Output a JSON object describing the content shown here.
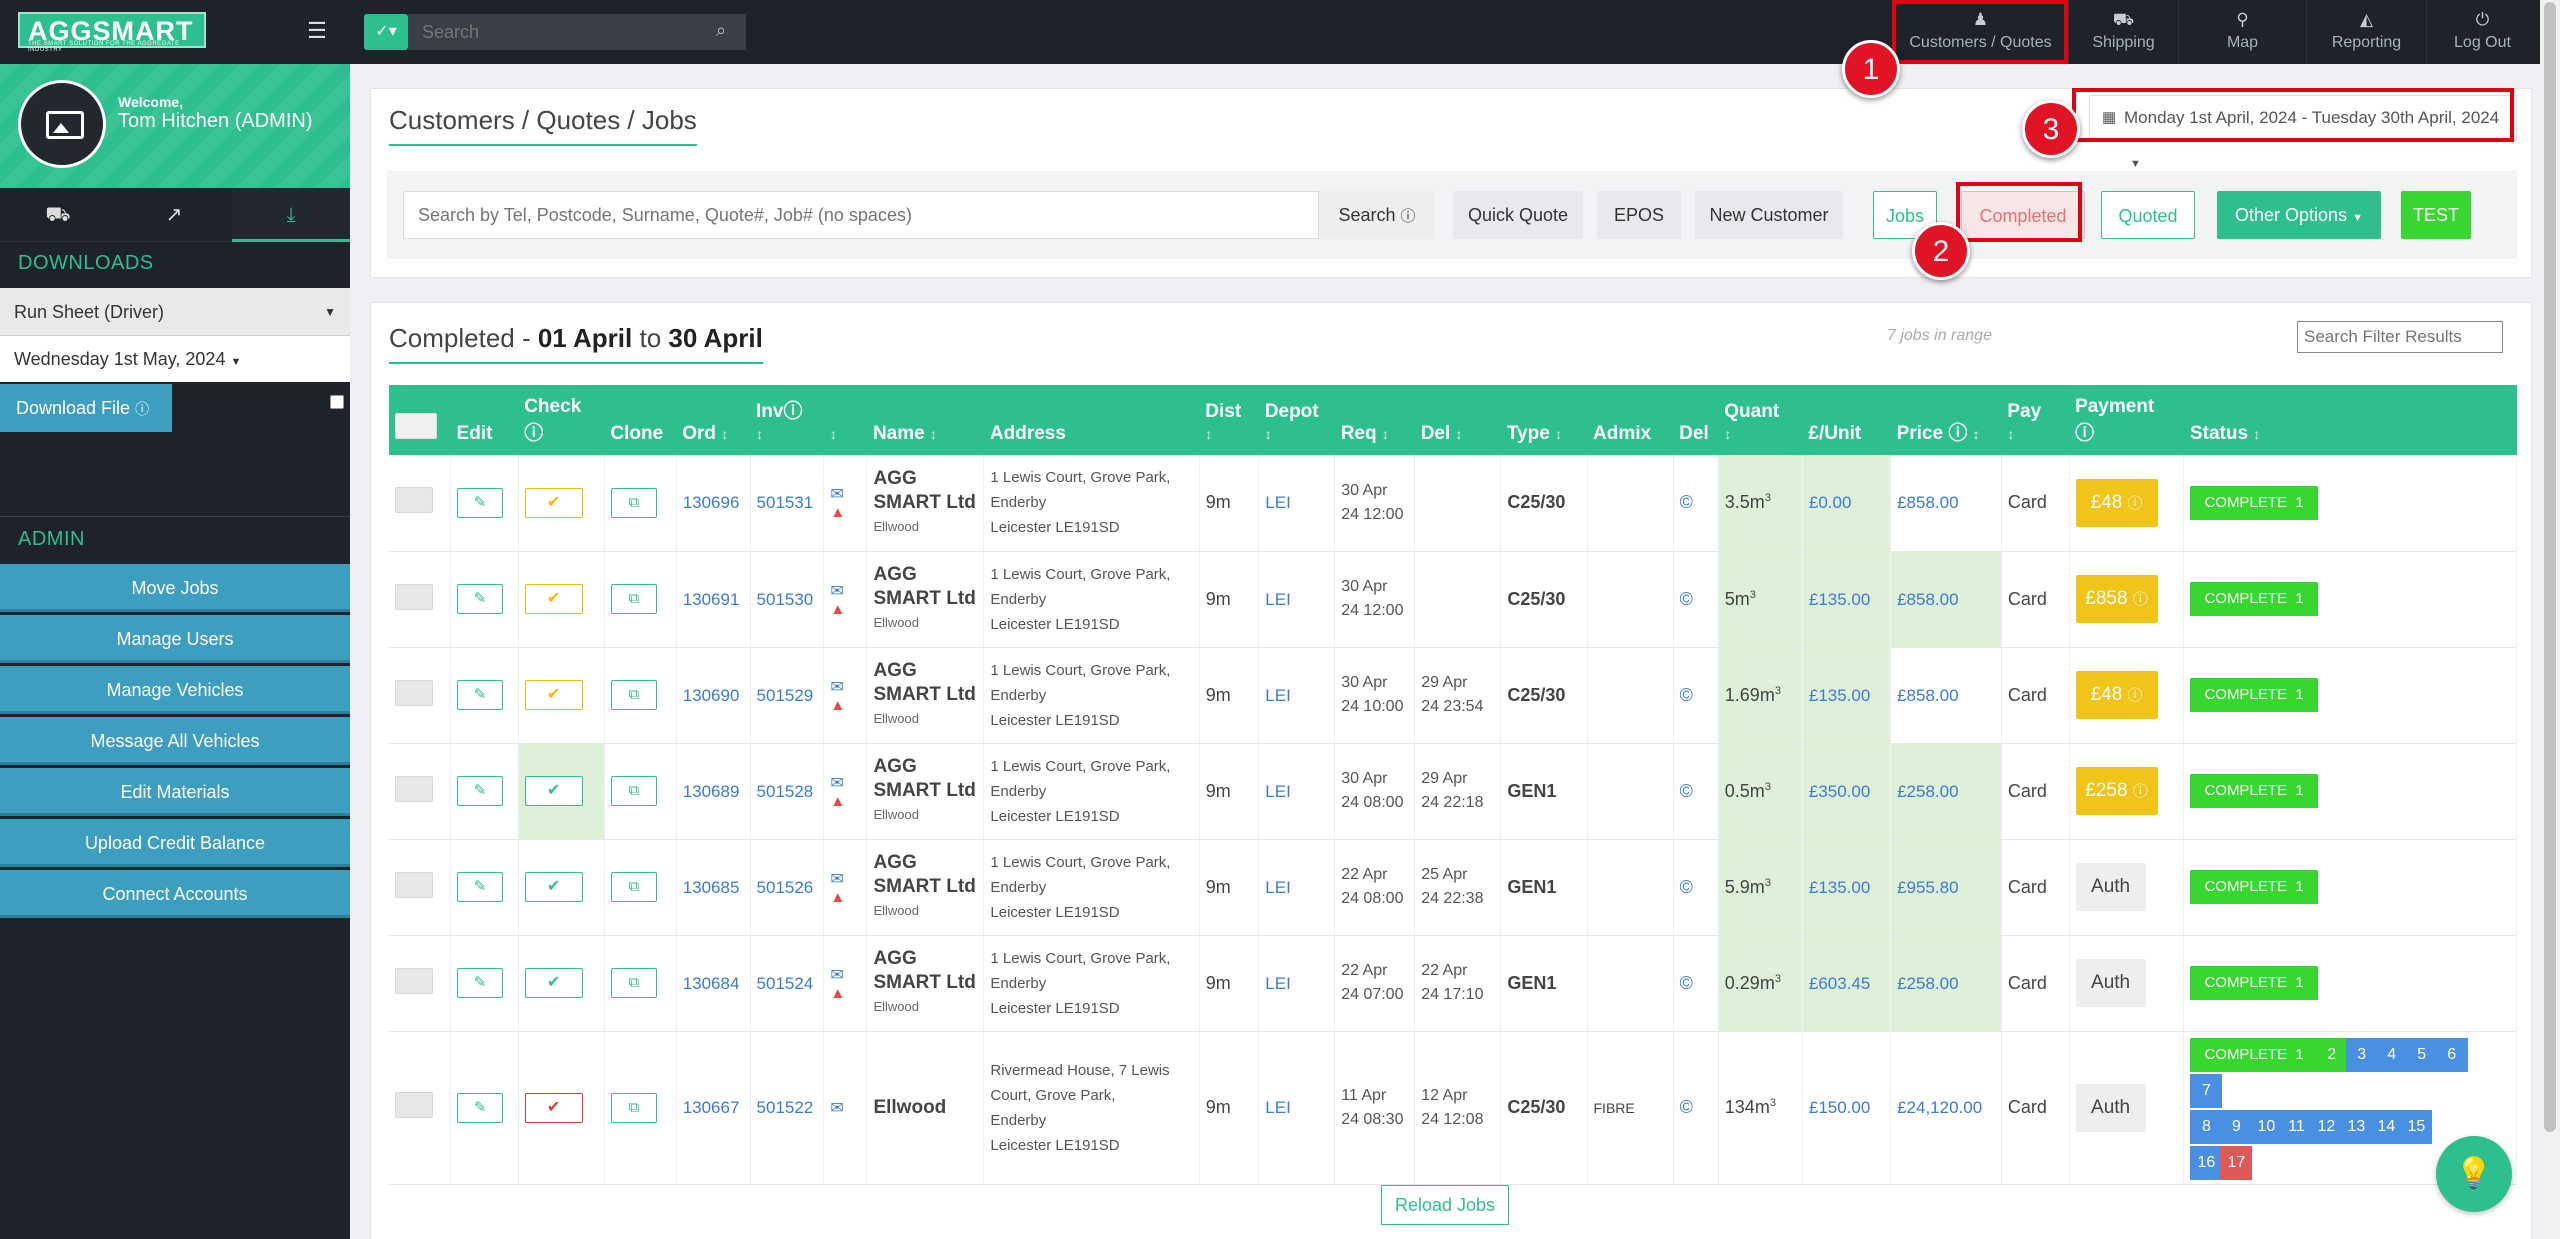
{
  "app": {
    "logo_main": "AGGSMART",
    "logo_tag": "THE SMART SOLUTION FOR THE AGGREGATE INDUSTRY"
  },
  "topbar": {
    "search_placeholder": "Search",
    "nav": [
      {
        "label": "Customers / Quotes",
        "icon": "person-icon"
      },
      {
        "label": "Shipping",
        "icon": "truck-icon"
      },
      {
        "label": "Map",
        "icon": "map-marker-icon"
      },
      {
        "label": "Reporting",
        "icon": "area-chart-icon"
      },
      {
        "label": "Log Out",
        "icon": "power-icon"
      }
    ]
  },
  "annotations": [
    "1",
    "2",
    "3"
  ],
  "sidebar": {
    "welcome": "Welcome,",
    "user": "Tom Hitchen (ADMIN)",
    "downloads_heading": "DOWNLOADS",
    "runsheet_select": "Run Sheet (Driver)",
    "date_select": "Wednesday 1st May, 2024",
    "download_button": "Download File",
    "admin_heading": "ADMIN",
    "admin_buttons": [
      "Move Jobs",
      "Manage Users",
      "Manage Vehicles",
      "Message All Vehicles",
      "Edit Materials",
      "Upload Credit Balance",
      "Connect Accounts"
    ]
  },
  "main": {
    "page_title": "Customers / Quotes / Jobs",
    "date_range": "Monday 1st April, 2024 - Tuesday 30th April, 2024",
    "search_placeholder": "Search by Tel, Postcode, Surname, Quote#, Job# (no spaces)",
    "buttons": {
      "search": "Search",
      "quick_quote": "Quick Quote",
      "epos": "EPOS",
      "new_customer": "New Customer",
      "jobs": "Jobs",
      "completed": "Completed",
      "quoted": "Quoted",
      "other_options": "Other Options",
      "test": "TEST"
    }
  },
  "list": {
    "title_prefix": "Completed",
    "title_from": "01 April",
    "title_to_word": "to",
    "title_to": "30 April",
    "jobs_count": "7 jobs in range",
    "filter_placeholder": "Search Filter Results",
    "reload": "Reload Jobs",
    "columns": [
      "Edit",
      "Check",
      "Clone",
      "Ord",
      "Inv",
      "Name",
      "Address",
      "Dist",
      "Depot",
      "Req",
      "Del",
      "Type",
      "Admix",
      "Del",
      "Quant",
      "£/Unit",
      "Price",
      "Pay",
      "Payment",
      "Status"
    ],
    "rows": [
      {
        "ord": "130696",
        "inv": "501531",
        "name": "AGG SMART Ltd",
        "sub": "Ellwood",
        "addr1": "1 Lewis Court, Grove Park,",
        "addr2": "Enderby",
        "addr3": "Leicester LE191SD",
        "dist": "9m",
        "depot": "LEI",
        "req1": "30 Apr",
        "req2": "24 12:00",
        "del1": "",
        "del2": "",
        "type": "C25/30",
        "admix": "",
        "quant": "3.5m",
        "unit": "£0.00",
        "price": "£858.00",
        "pay": "Card",
        "payment": "£48",
        "check": "y"
      },
      {
        "ord": "130691",
        "inv": "501530",
        "name": "AGG SMART Ltd",
        "sub": "Ellwood",
        "addr1": "1 Lewis Court, Grove Park,",
        "addr2": "Enderby",
        "addr3": "Leicester LE191SD",
        "dist": "9m",
        "depot": "LEI",
        "req1": "30 Apr",
        "req2": "24 12:00",
        "del1": "",
        "del2": "",
        "type": "C25/30",
        "admix": "",
        "quant": "5m",
        "unit": "£135.00",
        "price": "£858.00",
        "pay": "Card",
        "payment": "£858",
        "check": "y"
      },
      {
        "ord": "130690",
        "inv": "501529",
        "name": "AGG SMART Ltd",
        "sub": "Ellwood",
        "addr1": "1 Lewis Court, Grove Park,",
        "addr2": "Enderby",
        "addr3": "Leicester LE191SD",
        "dist": "9m",
        "depot": "LEI",
        "req1": "30 Apr",
        "req2": "24 10:00",
        "del1": "29 Apr",
        "del2": "24 23:54",
        "type": "C25/30",
        "admix": "",
        "quant": "1.69m",
        "unit": "£135.00",
        "price": "£858.00",
        "pay": "Card",
        "payment": "£48",
        "check": "y"
      },
      {
        "ord": "130689",
        "inv": "501528",
        "name": "AGG SMART Ltd",
        "sub": "Ellwood",
        "addr1": "1 Lewis Court, Grove Park,",
        "addr2": "Enderby",
        "addr3": "Leicester LE191SD",
        "dist": "9m",
        "depot": "LEI",
        "req1": "30 Apr",
        "req2": "24 08:00",
        "del1": "29 Apr",
        "del2": "24 22:18",
        "type": "GEN1",
        "admix": "",
        "quant": "0.5m",
        "unit": "£350.00",
        "price": "£258.00",
        "pay": "Card",
        "payment": "£258",
        "check": "g"
      },
      {
        "ord": "130685",
        "inv": "501526",
        "name": "AGG SMART Ltd",
        "sub": "Ellwood",
        "addr1": "1 Lewis Court, Grove Park,",
        "addr2": "Enderby",
        "addr3": "Leicester LE191SD",
        "dist": "9m",
        "depot": "LEI",
        "req1": "22 Apr",
        "req2": "24 08:00",
        "del1": "25 Apr",
        "del2": "24 22:38",
        "type": "GEN1",
        "admix": "",
        "quant": "5.9m",
        "unit": "£135.00",
        "price": "£955.80",
        "pay": "Card",
        "payment": "Auth",
        "check": "g"
      },
      {
        "ord": "130684",
        "inv": "501524",
        "name": "AGG SMART Ltd",
        "sub": "Ellwood",
        "addr1": "1 Lewis Court, Grove Park,",
        "addr2": "Enderby",
        "addr3": "Leicester LE191SD",
        "dist": "9m",
        "depot": "LEI",
        "req1": "22 Apr",
        "req2": "24 07:00",
        "del1": "22 Apr",
        "del2": "24 17:10",
        "type": "GEN1",
        "admix": "",
        "quant": "0.29m",
        "unit": "£603.45",
        "price": "£258.00",
        "pay": "Card",
        "payment": "Auth",
        "check": "g"
      },
      {
        "ord": "130667",
        "inv": "501522",
        "name": "Ellwood",
        "sub": "",
        "addr1": "Rivermead House, 7 Lewis",
        "addr2": "Court, Grove Park,",
        "addr3": "Enderby",
        "addr4": "Leicester LE191SD",
        "dist": "9m",
        "depot": "LEI",
        "req1": "11 Apr",
        "req2": "24 08:30",
        "del1": "12 Apr",
        "del2": "24 12:08",
        "type": "C25/30",
        "admix": "FIBRE",
        "quant": "134m",
        "unit": "£150.00",
        "price": "£24,120.00",
        "pay": "Card",
        "payment": "Auth",
        "check": "r"
      }
    ],
    "status_complete": "COMPLETE",
    "status_num": "1",
    "status_chips": [
      "2",
      "3",
      "4",
      "5",
      "6",
      "7",
      "8",
      "9",
      "10",
      "11",
      "12",
      "13",
      "14",
      "15",
      "16",
      "17"
    ],
    "quant_sup": "3",
    "del_symbol": "©"
  }
}
